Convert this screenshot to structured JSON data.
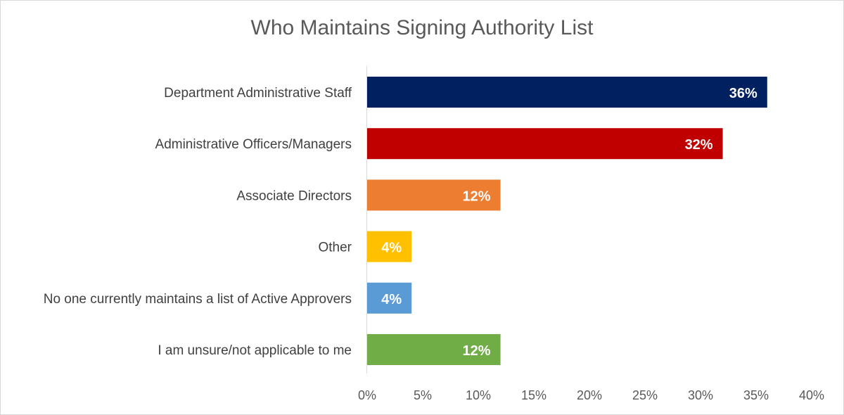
{
  "chart_data": {
    "type": "bar",
    "orientation": "horizontal",
    "title": "Who Maintains Signing Authority List",
    "categories": [
      "Department Administrative Staff",
      "Administrative Officers/Managers",
      "Associate Directors",
      "Other",
      "No one currently maintains a list of Active Approvers",
      "I am unsure/not applicable to me"
    ],
    "values": [
      36,
      32,
      12,
      4,
      4,
      12
    ],
    "data_labels": [
      "36%",
      "32%",
      "12%",
      "4%",
      "4%",
      "12%"
    ],
    "colors": [
      "#002060",
      "#c00000",
      "#ed7d31",
      "#ffc000",
      "#5b9bd5",
      "#70ad47"
    ],
    "xlim": [
      0,
      40
    ],
    "x_ticks": [
      0,
      5,
      10,
      15,
      20,
      25,
      30,
      35,
      40
    ],
    "x_tick_labels": [
      "0%",
      "5%",
      "10%",
      "15%",
      "20%",
      "25%",
      "30%",
      "35%",
      "40%"
    ],
    "xlabel": "",
    "ylabel": "",
    "grid": false,
    "legend": "none"
  }
}
